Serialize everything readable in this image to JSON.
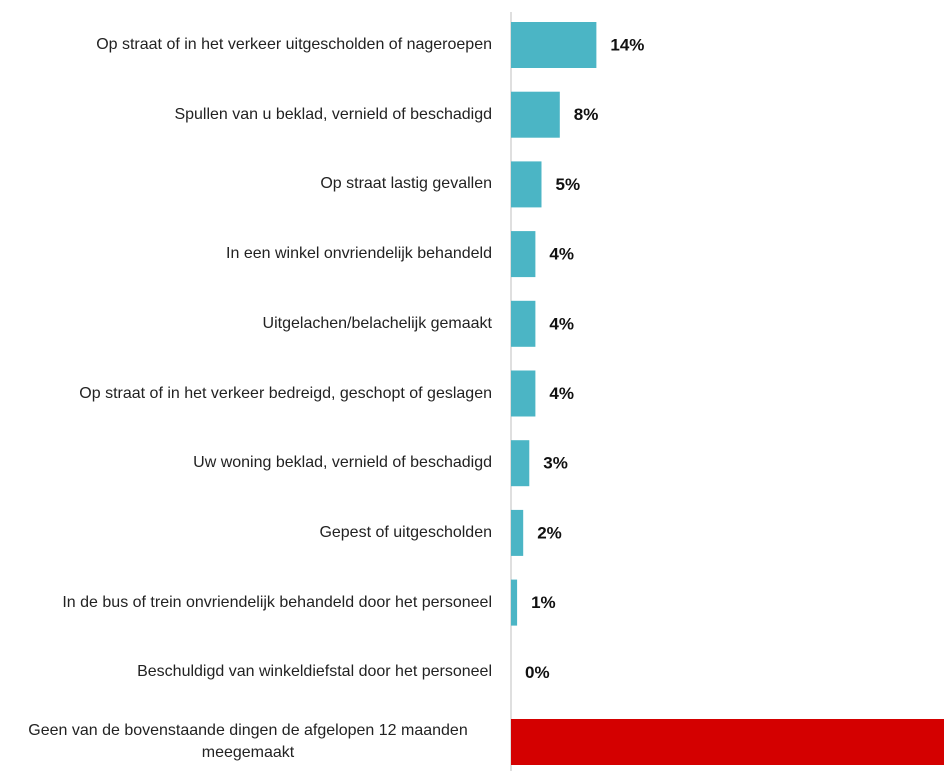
{
  "chart_data": {
    "type": "bar",
    "orientation": "horizontal",
    "categories": [
      "Op straat of in het verkeer uitgescholden of nageroepen",
      "Spullen van u beklad, vernield of beschadigd",
      "Op straat lastig gevallen",
      "In een winkel onvriendelijk behandeld",
      "Uitgelachen/belachelijk gemaakt",
      "Op straat of in het verkeer bedreigd, geschopt of geslagen",
      "Uw woning beklad, vernield of beschadigd",
      "Gepest of uitgescholden",
      "In de bus of trein onvriendelijk behandeld door het personeel",
      "Beschuldigd van winkeldiefstal door het personeel",
      "Geen van de bovenstaande dingen de afgelopen 12 maanden meegemaakt"
    ],
    "values": [
      14,
      8,
      5,
      4,
      4,
      4,
      3,
      2,
      1,
      0,
      71
    ],
    "value_labels": [
      "14%",
      "8%",
      "5%",
      "4%",
      "4%",
      "4%",
      "3%",
      "2%",
      "1%",
      "0%",
      "71%"
    ],
    "colors": [
      "#4bb5c5",
      "#4bb5c5",
      "#4bb5c5",
      "#4bb5c5",
      "#4bb5c5",
      "#4bb5c5",
      "#4bb5c5",
      "#4bb5c5",
      "#4bb5c5",
      "#4bb5c5",
      "#d40000"
    ]
  }
}
